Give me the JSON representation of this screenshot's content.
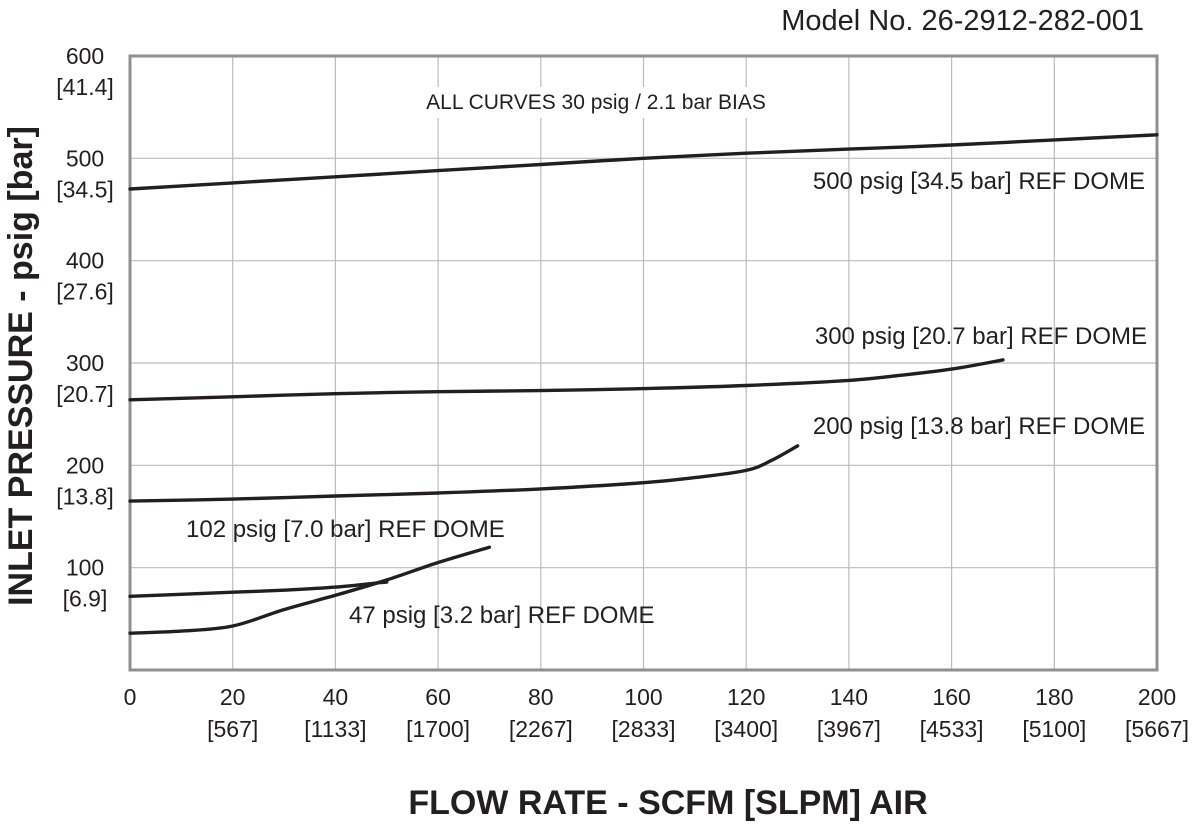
{
  "model_number": "Model No. 26-2912-282-001",
  "chart_data": {
    "type": "line",
    "title": "",
    "xlabel": "FLOW RATE - SCFM [SLPM] AIR",
    "ylabel": "INLET PRESSURE - psig [bar]",
    "xlim": [
      0,
      200
    ],
    "ylim": [
      0,
      600
    ],
    "grid": true,
    "x_ticks": [
      {
        "value": 0,
        "primary": "0",
        "secondary": ""
      },
      {
        "value": 20,
        "primary": "20",
        "secondary": "[567]"
      },
      {
        "value": 40,
        "primary": "40",
        "secondary": "[1133]"
      },
      {
        "value": 60,
        "primary": "60",
        "secondary": "[1700]"
      },
      {
        "value": 80,
        "primary": "80",
        "secondary": "[2267]"
      },
      {
        "value": 100,
        "primary": "100",
        "secondary": "[2833]"
      },
      {
        "value": 120,
        "primary": "120",
        "secondary": "[3400]"
      },
      {
        "value": 140,
        "primary": "140",
        "secondary": "[3967]"
      },
      {
        "value": 160,
        "primary": "160",
        "secondary": "[4533]"
      },
      {
        "value": 180,
        "primary": "180",
        "secondary": "[5100]"
      },
      {
        "value": 200,
        "primary": "200",
        "secondary": "[5667]"
      }
    ],
    "y_ticks": [
      {
        "value": 100,
        "primary": "100",
        "secondary": "[6.9]"
      },
      {
        "value": 200,
        "primary": "200",
        "secondary": "[13.8]"
      },
      {
        "value": 300,
        "primary": "300",
        "secondary": "[20.7]"
      },
      {
        "value": 400,
        "primary": "400",
        "secondary": "[27.6]"
      },
      {
        "value": 500,
        "primary": "500",
        "secondary": "[34.5]"
      },
      {
        "value": 600,
        "primary": "600",
        "secondary": "[41.4]"
      }
    ],
    "annotation": "ALL CURVES 30 psig / 2.1 bar BIAS",
    "series": [
      {
        "name": "500 psig [34.5 bar] REF DOME",
        "x": [
          0,
          20,
          40,
          60,
          80,
          100,
          120,
          140,
          160,
          180,
          200
        ],
        "y": [
          470,
          476,
          482,
          488,
          494,
          500,
          505,
          509,
          513,
          518,
          523
        ]
      },
      {
        "name": "300 psig [20.7 bar] REF DOME",
        "x": [
          0,
          20,
          40,
          60,
          80,
          100,
          120,
          140,
          150,
          160,
          170
        ],
        "y": [
          264,
          267,
          270,
          272,
          273,
          275,
          278,
          283,
          288,
          294,
          303
        ]
      },
      {
        "name": "200 psig [13.8 bar] REF DOME",
        "x": [
          0,
          20,
          40,
          60,
          80,
          100,
          110,
          120,
          125,
          130
        ],
        "y": [
          165,
          167,
          170,
          173,
          177,
          183,
          188,
          195,
          205,
          219
        ]
      },
      {
        "name": "102 psig [7.0 bar] REF DOME",
        "x": [
          0,
          10,
          20,
          30,
          40,
          50
        ],
        "y": [
          72,
          74,
          76,
          78,
          81,
          86
        ]
      },
      {
        "name": "47 psig [3.2 bar] REF DOME",
        "x": [
          0,
          10,
          20,
          30,
          40,
          50,
          60,
          70
        ],
        "y": [
          36,
          38,
          43,
          59,
          73,
          88,
          105,
          120
        ]
      }
    ]
  }
}
